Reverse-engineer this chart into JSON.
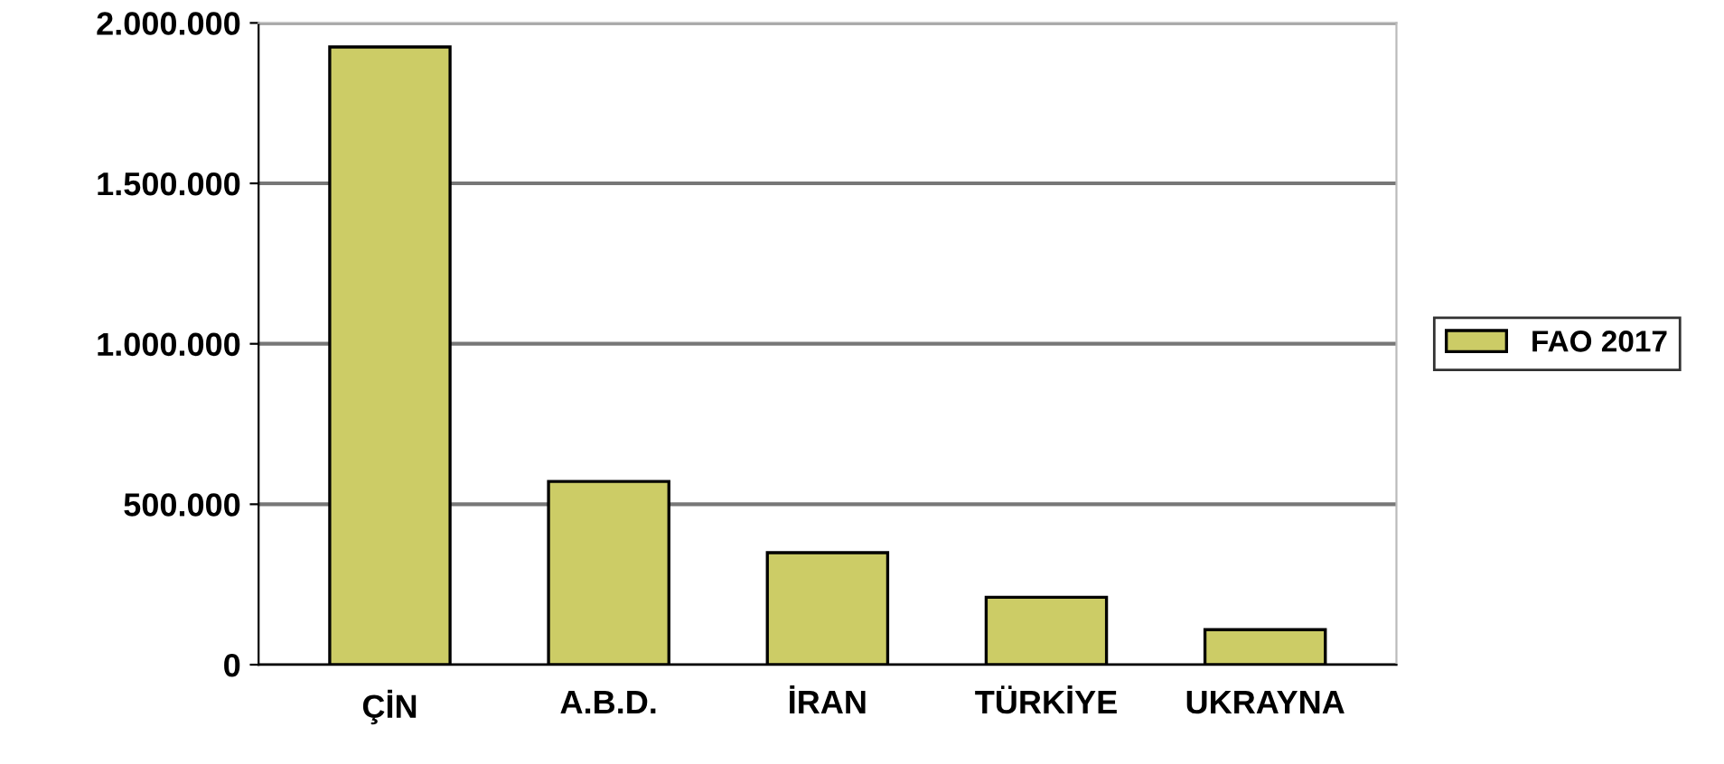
{
  "chart_data": {
    "type": "bar",
    "categories": [
      "ÇİN",
      "A.B.D.",
      "İRAN",
      "TÜRKİYE",
      "UKRAYNA"
    ],
    "series": [
      {
        "name": "FAO 2017",
        "color": "#cccc66",
        "values": [
          1925000,
          571000,
          349000,
          210000,
          109000
        ]
      }
    ],
    "ylim": [
      0,
      2000000
    ],
    "yticks": [
      {
        "value": 0,
        "label": "0"
      },
      {
        "value": 500000,
        "label": "500.000"
      },
      {
        "value": 1000000,
        "label": "1.000.000"
      },
      {
        "value": 1500000,
        "label": "1.500.000"
      },
      {
        "value": 2000000,
        "label": "2.000.000"
      }
    ],
    "grid": "y",
    "legend": "right"
  }
}
